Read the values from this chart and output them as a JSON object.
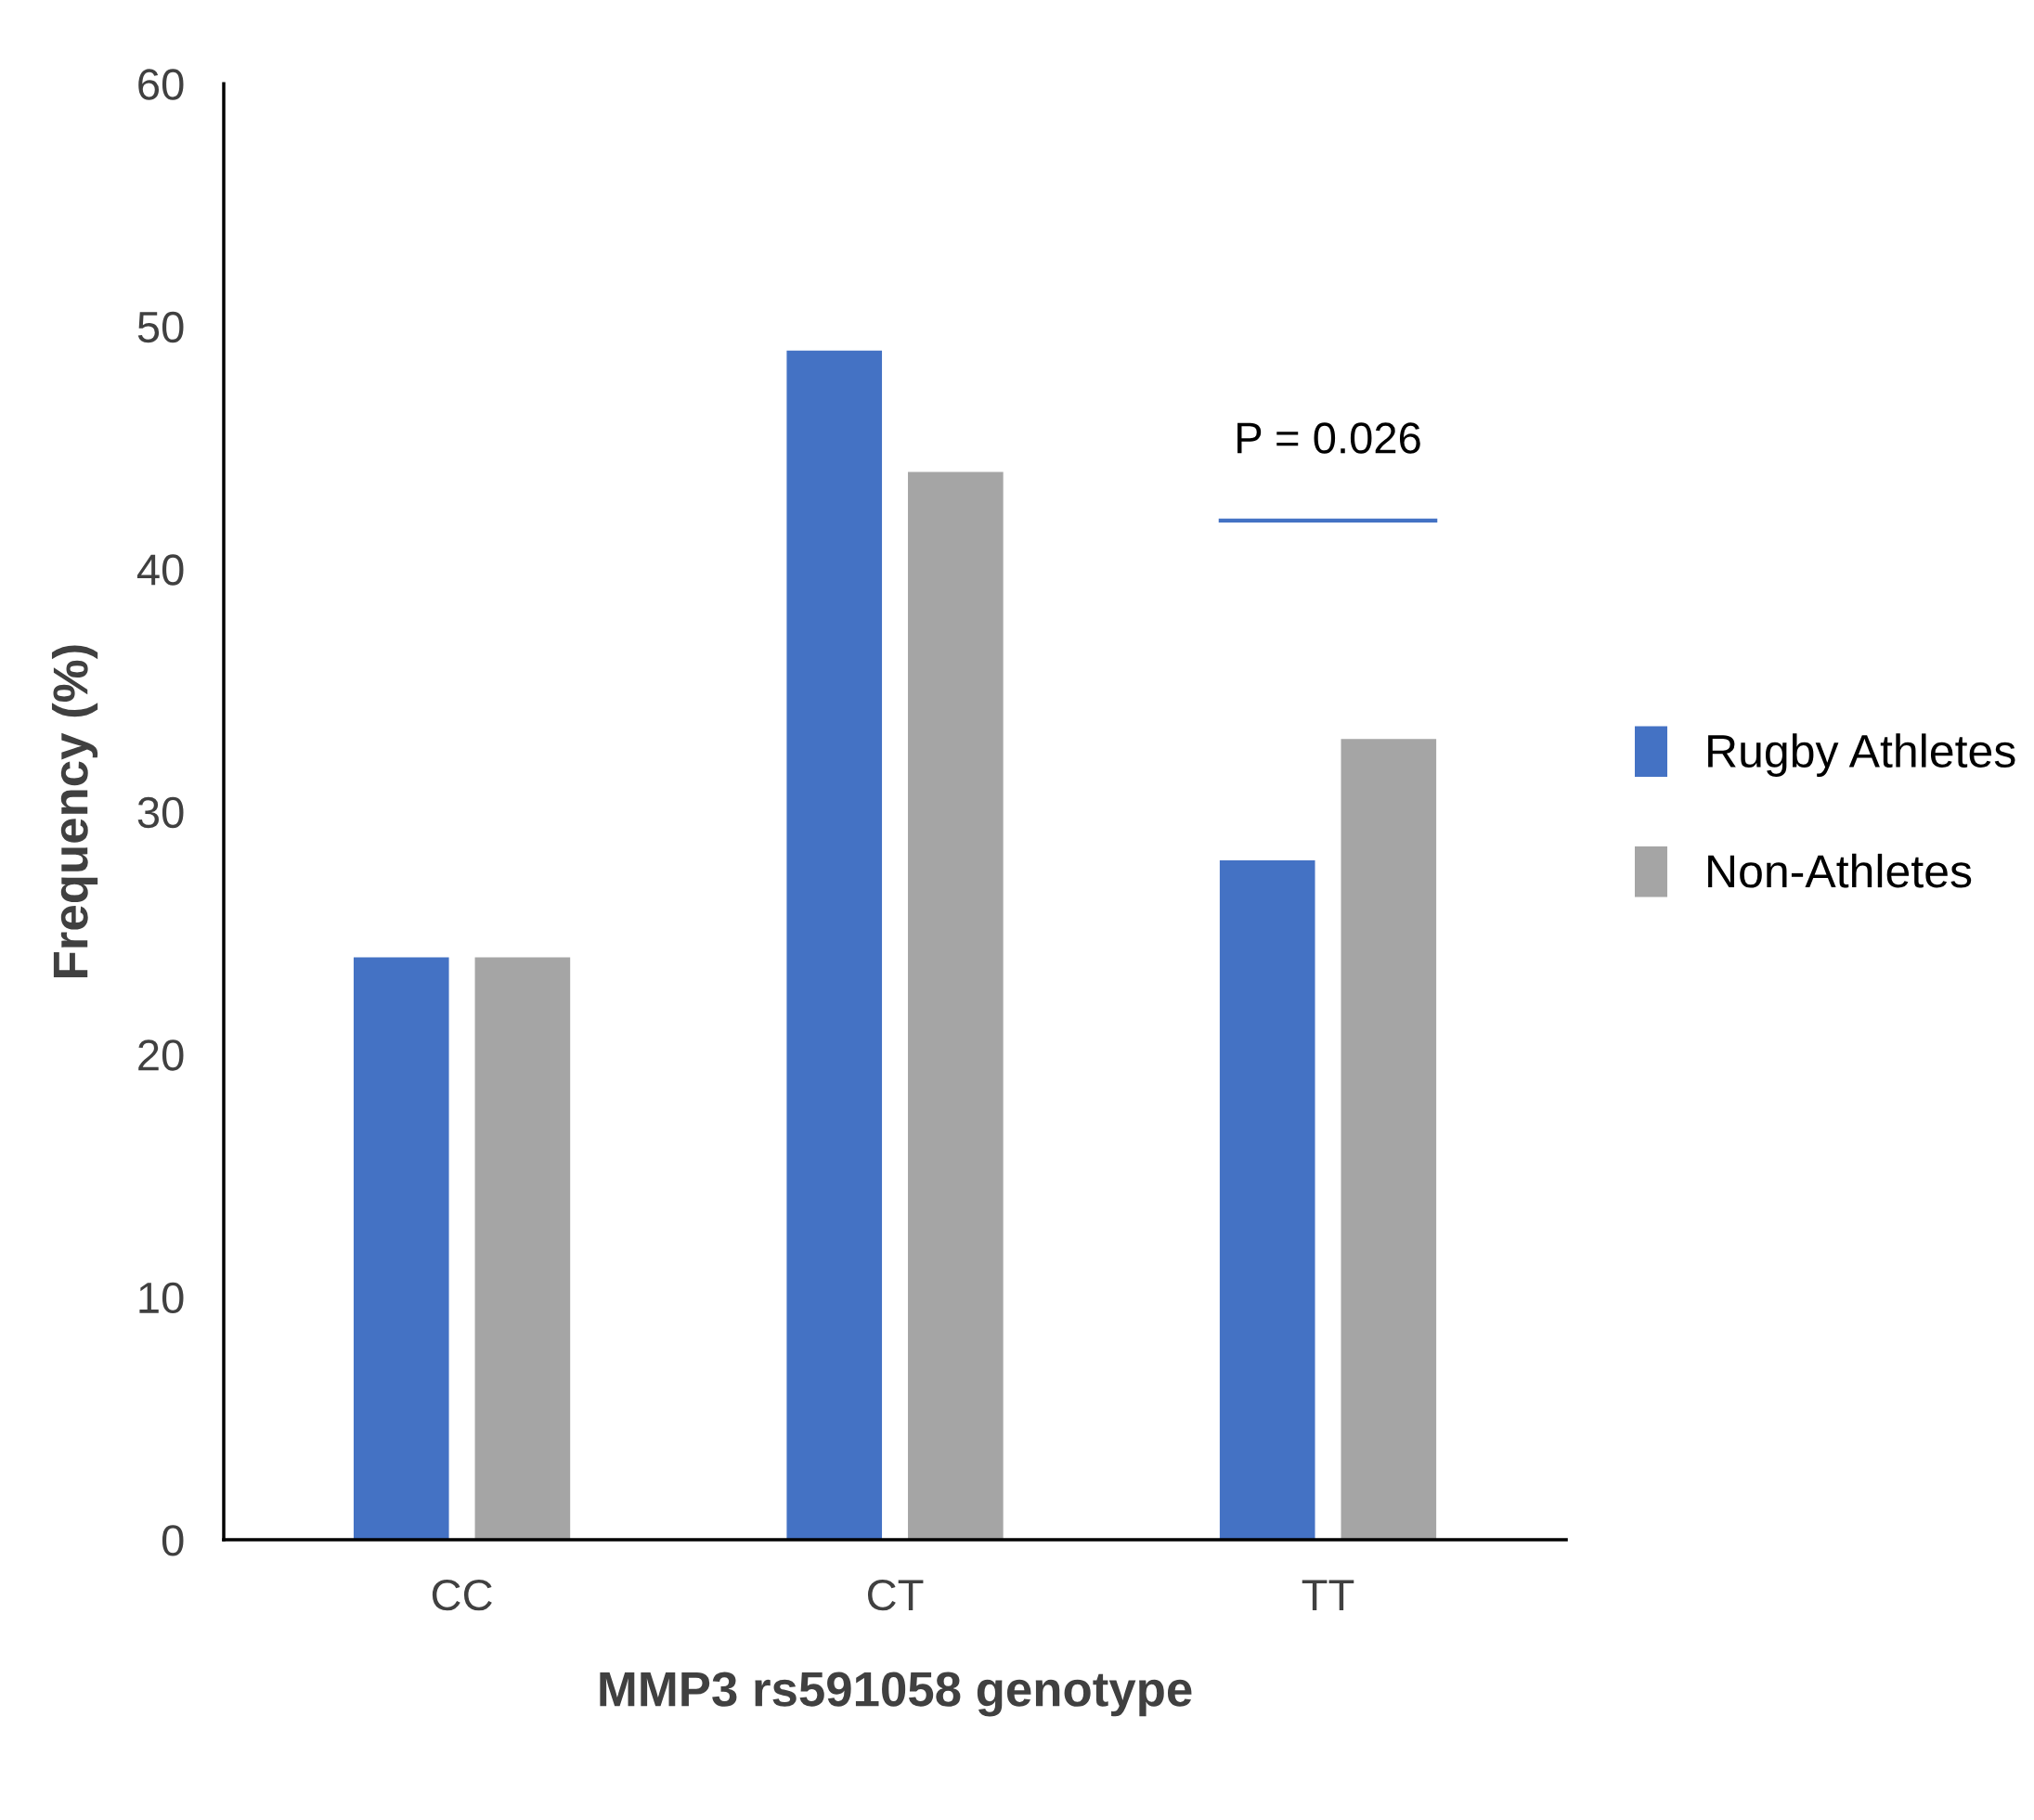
{
  "chart_data": {
    "type": "bar",
    "xlabel": "MMP3 rs591058 genotype",
    "ylabel": "Frequency (%)",
    "categories": [
      "CC",
      "CT",
      "TT"
    ],
    "series": [
      {
        "name": "Rugby Athletes",
        "color": "#4472c4",
        "values": [
          24,
          49,
          28
        ]
      },
      {
        "name": "Non-Athletes",
        "color": "#a5a5a5",
        "values": [
          24,
          44,
          33
        ]
      }
    ],
    "ylim": [
      0,
      60
    ],
    "yticks": [
      0,
      10,
      20,
      30,
      40,
      50,
      60
    ],
    "grid": false,
    "legend": "right",
    "annotations": [
      "P = 0.026"
    ]
  }
}
